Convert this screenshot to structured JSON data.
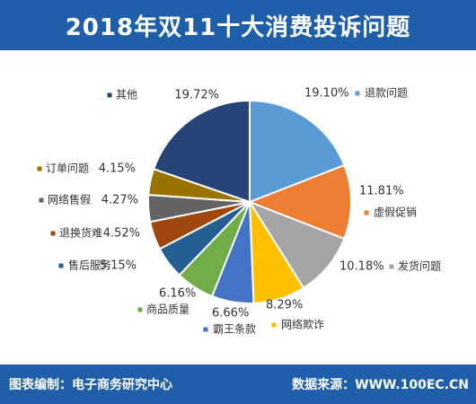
{
  "title": "2018年双11十大消费投诉问题",
  "footer": {
    "left": "图表编制：电子商务研究中心",
    "right": "数据来源：WWW.100EC.CN"
  },
  "chart_data": {
    "type": "pie",
    "title": "2018年双11十大消费投诉问题",
    "slices": [
      {
        "name": "退款问题",
        "value": 19.1,
        "label": "19.10%",
        "color": "#5b9bd5"
      },
      {
        "name": "虚假促销",
        "value": 11.81,
        "label": "11.81%",
        "color": "#ed7d31"
      },
      {
        "name": "发货问题",
        "value": 10.18,
        "label": "10.18%",
        "color": "#a5a5a5"
      },
      {
        "name": "网络欺诈",
        "value": 8.29,
        "label": "8.29%",
        "color": "#ffc000"
      },
      {
        "name": "霸王条款",
        "value": 6.66,
        "label": "6.66%",
        "color": "#4472c4"
      },
      {
        "name": "商品质量",
        "value": 6.16,
        "label": "6.16%",
        "color": "#70ad47"
      },
      {
        "name": "售后服务",
        "value": 5.15,
        "label": "5.15%",
        "color": "#255e91"
      },
      {
        "name": "退换货难",
        "value": 4.52,
        "label": "4.52%",
        "color": "#9e480e"
      },
      {
        "name": "网络售假",
        "value": 4.27,
        "label": "4.27%",
        "color": "#636363"
      },
      {
        "name": "订单问题",
        "value": 4.15,
        "label": "4.15%",
        "color": "#997300"
      },
      {
        "name": "其他",
        "value": 19.72,
        "label": "19.72%",
        "color": "#264478"
      }
    ]
  }
}
